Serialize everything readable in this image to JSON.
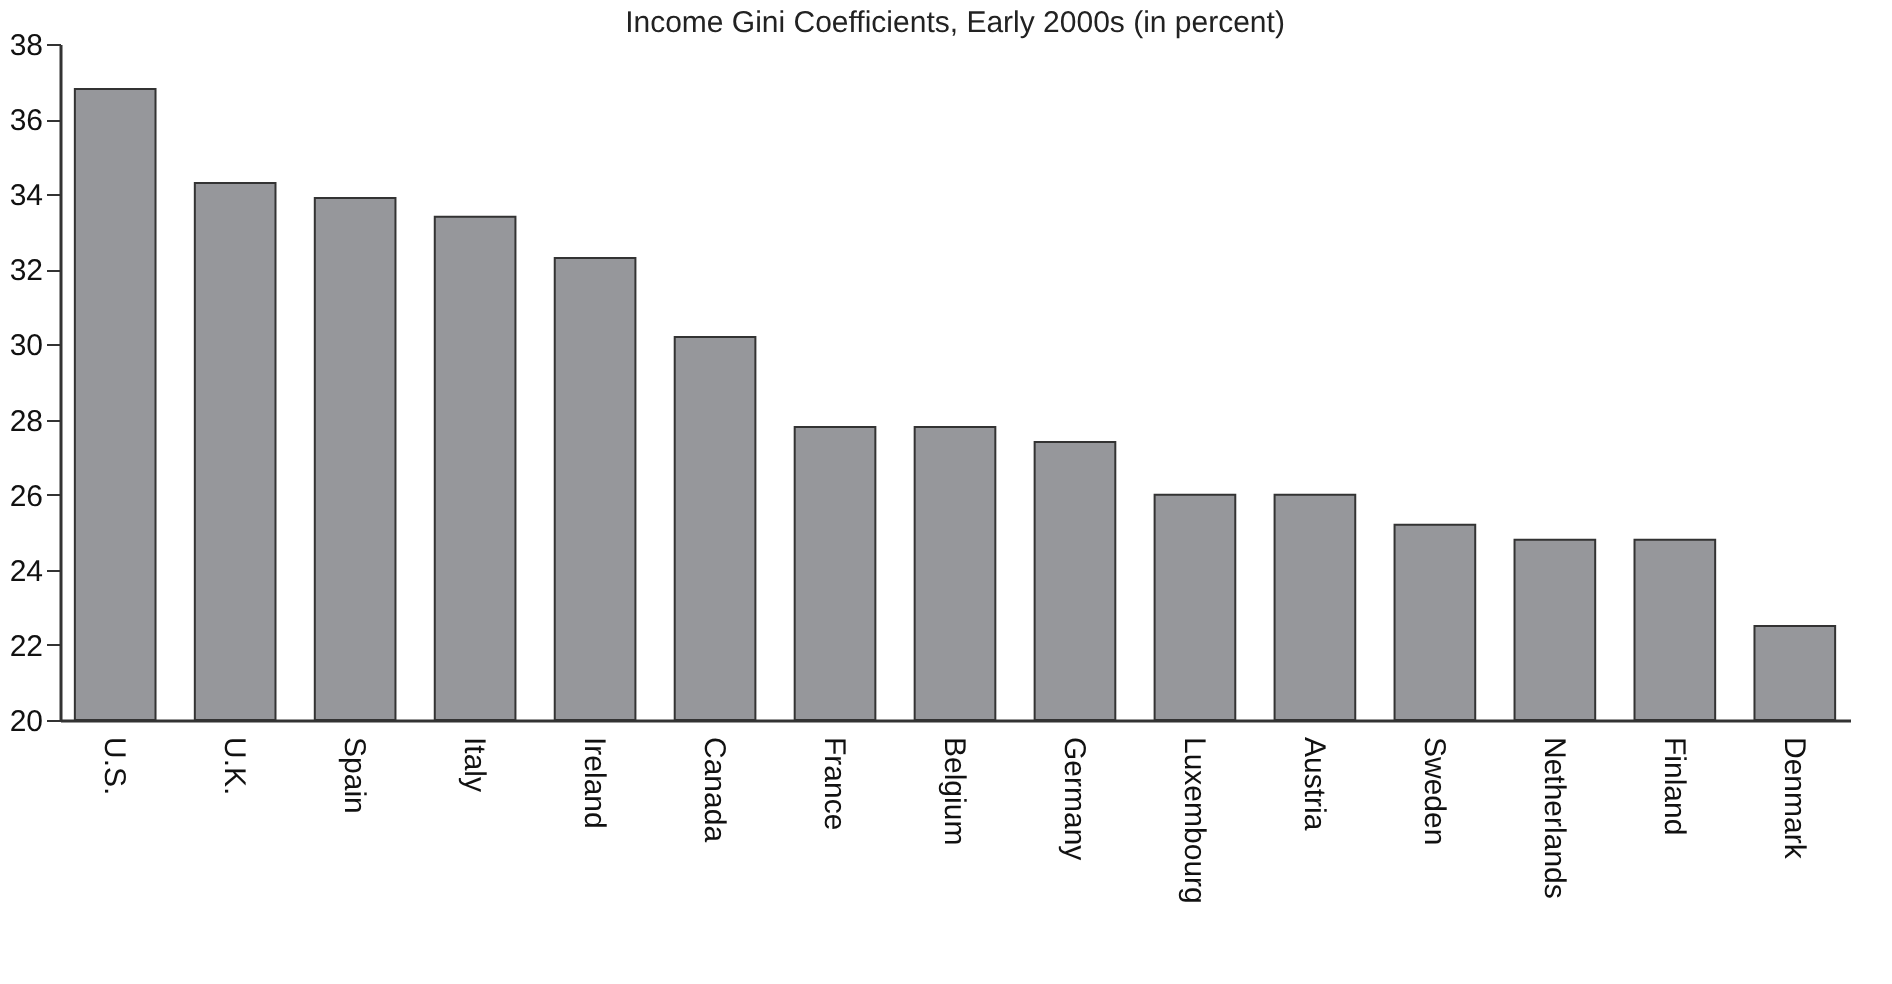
{
  "chart_data": {
    "type": "bar",
    "title": "Income Gini Coefficients, Early 2000s (in percent)",
    "categories": [
      "U.S.",
      "U.K.",
      "Spain",
      "Italy",
      "Ireland",
      "Canada",
      "France",
      "Belgium",
      "Germany",
      "Luxembourg",
      "Austria",
      "Sweden",
      "Netherlands",
      "Finland",
      "Denmark"
    ],
    "values": [
      36.8,
      34.3,
      33.9,
      33.4,
      32.3,
      30.2,
      27.8,
      27.8,
      27.4,
      26,
      26,
      25.2,
      24.8,
      24.8,
      22.5
    ],
    "color": "#96979b",
    "ylim": [
      20,
      38
    ],
    "yticks": [
      20,
      22,
      24,
      26,
      28,
      30,
      32,
      34,
      36,
      38
    ],
    "grid": false
  }
}
